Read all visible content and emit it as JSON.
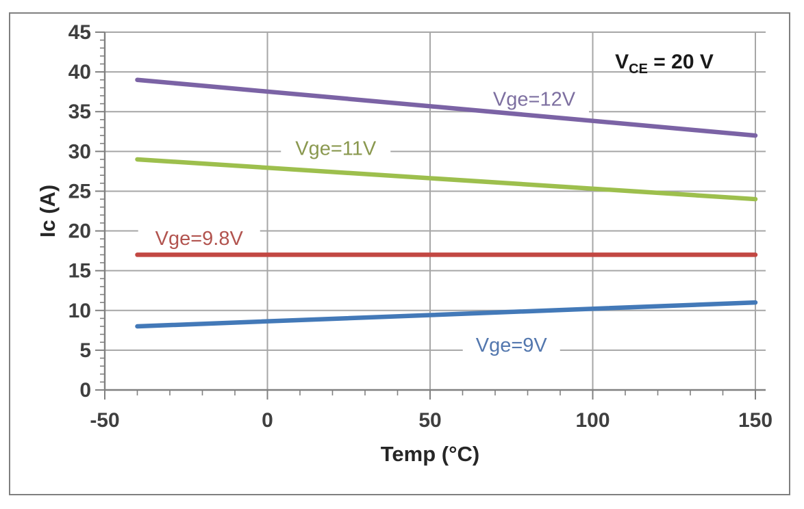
{
  "figure": {
    "border_color": "#7f7f7f",
    "background": "#ffffff"
  },
  "chart_data": {
    "type": "line",
    "title": "",
    "xlabel": "Temp (°C)",
    "ylabel": "Ic (A)",
    "xlim": [
      -50,
      150
    ],
    "ylim": [
      0,
      45
    ],
    "x_ticks": [
      -50,
      0,
      50,
      100,
      150
    ],
    "y_ticks": [
      0,
      5,
      10,
      15,
      20,
      25,
      30,
      35,
      40,
      45
    ],
    "x_minor_step": 10,
    "y_minor_step": 1,
    "grid": true,
    "legend_position": "inline-labels",
    "annotation": {
      "pre": "V",
      "sub": "CE",
      "post": " = 20 V",
      "pos": [
        122,
        41.3
      ],
      "color": "#1a1a1a"
    },
    "series": [
      {
        "name": "Vge=12V",
        "color": "#7b63a5",
        "label_color": "#7d6fa0",
        "points": [
          [
            -40,
            39
          ],
          [
            150,
            32
          ]
        ],
        "label_pos": [
          82,
          36.6
        ]
      },
      {
        "name": "Vge=11V",
        "color": "#9dbf4d",
        "label_color": "#8a984f",
        "points": [
          [
            -40,
            29
          ],
          [
            150,
            24
          ]
        ],
        "label_pos": [
          21,
          30.4
        ]
      },
      {
        "name": "Vge=9.8V",
        "color": "#c24742",
        "label_color": "#b2544f",
        "points": [
          [
            -40,
            17
          ],
          [
            150,
            17
          ]
        ],
        "label_pos": [
          -21,
          19.1
        ]
      },
      {
        "name": "Vge=9V",
        "color": "#4379b8",
        "label_color": "#5377ae",
        "points": [
          [
            -40,
            8
          ],
          [
            150,
            11
          ]
        ],
        "label_pos": [
          75,
          5.7
        ]
      }
    ],
    "axis_colors": {
      "tick_label": "#3f3f3f",
      "axis_line": "#808080",
      "gridline": "#a6a6a6",
      "axis_title": "#262626"
    }
  }
}
